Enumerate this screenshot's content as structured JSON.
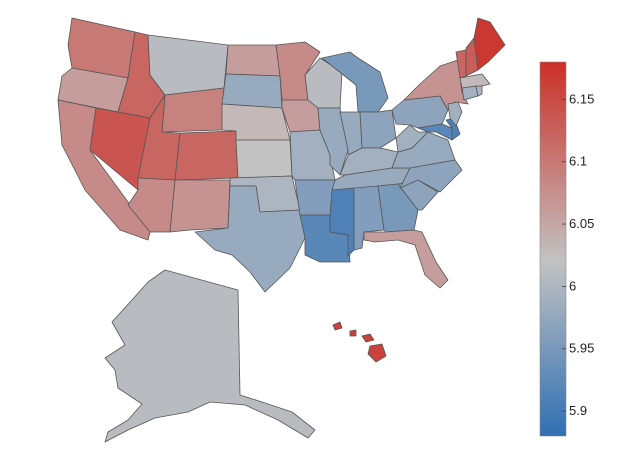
{
  "colorbar": {
    "min": 5.88,
    "max": 6.18,
    "ticks": [
      "5.9",
      "5.95",
      "6",
      "6.05",
      "6.1",
      "6.15"
    ],
    "tick_values": [
      5.9,
      5.95,
      6.0,
      6.05,
      6.1,
      6.15
    ],
    "color_low": "#2f6fb3",
    "color_mid": "#c2c2c2",
    "color_high": "#cc2f28",
    "mid_value": 6.02
  },
  "regions": [
    {
      "id": "WA",
      "value": 6.1
    },
    {
      "id": "OR",
      "value": 6.06
    },
    {
      "id": "CA",
      "value": 6.08
    },
    {
      "id": "NV",
      "value": 6.14
    },
    {
      "id": "ID",
      "value": 6.12
    },
    {
      "id": "MT",
      "value": 6.01
    },
    {
      "id": "WY",
      "value": 6.09
    },
    {
      "id": "UT",
      "value": 6.12
    },
    {
      "id": "AZ",
      "value": 6.08
    },
    {
      "id": "CO",
      "value": 6.12
    },
    {
      "id": "NM",
      "value": 6.07
    },
    {
      "id": "ND",
      "value": 6.06
    },
    {
      "id": "SD",
      "value": 5.98
    },
    {
      "id": "NE",
      "value": 6.03
    },
    {
      "id": "KS",
      "value": 6.02
    },
    {
      "id": "OK",
      "value": 6.0
    },
    {
      "id": "TX",
      "value": 5.98
    },
    {
      "id": "MN",
      "value": 6.08
    },
    {
      "id": "IA",
      "value": 6.06
    },
    {
      "id": "MO",
      "value": 5.99
    },
    {
      "id": "AR",
      "value": 5.96
    },
    {
      "id": "LA",
      "value": 5.92
    },
    {
      "id": "WI",
      "value": 6.01
    },
    {
      "id": "IL",
      "value": 5.98
    },
    {
      "id": "MI",
      "value": 5.95
    },
    {
      "id": "IN",
      "value": 5.98
    },
    {
      "id": "OH",
      "value": 5.97
    },
    {
      "id": "KY",
      "value": 5.99
    },
    {
      "id": "TN",
      "value": 5.98
    },
    {
      "id": "MS",
      "value": 5.91
    },
    {
      "id": "AL",
      "value": 5.96
    },
    {
      "id": "GA",
      "value": 5.95
    },
    {
      "id": "FL",
      "value": 6.06
    },
    {
      "id": "SC",
      "value": 5.97
    },
    {
      "id": "NC",
      "value": 5.97
    },
    {
      "id": "VA",
      "value": 5.98
    },
    {
      "id": "WV",
      "value": 5.99
    },
    {
      "id": "PA",
      "value": 5.97
    },
    {
      "id": "NY",
      "value": 6.07
    },
    {
      "id": "MD",
      "value": 5.92
    },
    {
      "id": "DE",
      "value": 5.91
    },
    {
      "id": "NJ",
      "value": 5.99
    },
    {
      "id": "CT",
      "value": 5.99
    },
    {
      "id": "RI",
      "value": 6.0
    },
    {
      "id": "MA",
      "value": 6.03
    },
    {
      "id": "VT",
      "value": 6.12
    },
    {
      "id": "NH",
      "value": 6.13
    },
    {
      "id": "ME",
      "value": 6.17
    },
    {
      "id": "AK",
      "value": 6.01
    },
    {
      "id": "HI",
      "value": 6.16
    }
  ]
}
